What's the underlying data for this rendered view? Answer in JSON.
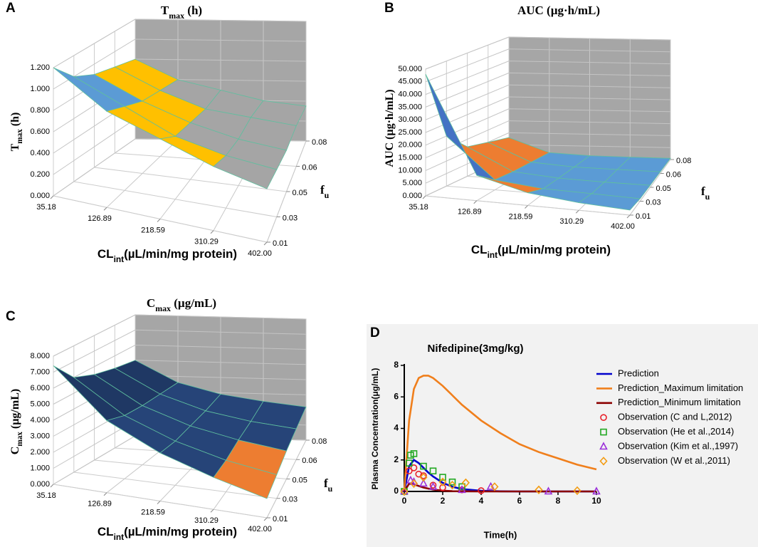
{
  "chart_data": [
    {
      "type": "surface",
      "panel_label": "A",
      "title": [
        "T",
        "max",
        " (h)"
      ],
      "zlabel": [
        "T",
        "max",
        " (h)"
      ],
      "xlabel": [
        "CL",
        "int",
        "(µL/min/mg protein)"
      ],
      "ylabel": [
        "f",
        "u"
      ],
      "categories": [
        "35.18",
        "126.89",
        "218.59",
        "310.29",
        "402.00"
      ],
      "depth_categories": [
        "0.01",
        "0.03",
        "0.05",
        "0.06",
        "0.08"
      ],
      "values": [
        [
          1.2,
          0.9,
          0.75,
          0.6,
          0.5
        ],
        [
          1.0,
          0.8,
          0.6,
          0.5,
          0.45
        ],
        [
          0.9,
          0.7,
          0.55,
          0.45,
          0.4
        ],
        [
          0.85,
          0.65,
          0.5,
          0.45,
          0.4
        ],
        [
          0.8,
          0.6,
          0.5,
          0.4,
          0.35
        ]
      ],
      "zlim": [
        0,
        1.2
      ],
      "zticks": [
        {
          "value": 0,
          "label": "0.000"
        },
        {
          "value": 0.2,
          "label": "0.200"
        },
        {
          "value": 0.4,
          "label": "0.400"
        },
        {
          "value": 0.6,
          "label": "0.600"
        },
        {
          "value": 0.8,
          "label": "0.800"
        },
        {
          "value": 1.0,
          "label": "1.000"
        },
        {
          "value": 1.2,
          "label": "1.200"
        }
      ],
      "colors": [
        "#4472c4",
        "#ed7d31",
        "#a5a5a5",
        "#ffc000",
        "#5b9bd5",
        "#70ad47"
      ]
    },
    {
      "type": "surface",
      "panel_label": "B",
      "title": [
        "AUC  (µg·h/mL)"
      ],
      "zlabel": [
        "AUC (µg·h/mL)"
      ],
      "xlabel": [
        "CL",
        "int",
        "(µL/min/mg protein)"
      ],
      "ylabel": [
        "f",
        "u"
      ],
      "categories": [
        "35.18",
        "126.89",
        "218.59",
        "310.29",
        "402.00"
      ],
      "depth_categories": [
        "0.01",
        "0.03",
        "0.05",
        "0.06",
        "0.08"
      ],
      "values": [
        [
          48,
          10,
          5,
          3,
          2
        ],
        [
          20,
          4,
          2,
          1.5,
          1
        ],
        [
          12,
          3,
          1.5,
          1,
          0.8
        ],
        [
          10,
          2.5,
          1.2,
          0.9,
          0.7
        ],
        [
          8,
          2,
          1,
          0.7,
          0.5
        ]
      ],
      "zlim": [
        0,
        50
      ],
      "zticks": [
        {
          "value": 0,
          "label": "0.000"
        },
        {
          "value": 5,
          "label": "5.000"
        },
        {
          "value": 10,
          "label": "10.000"
        },
        {
          "value": 15,
          "label": "15.000"
        },
        {
          "value": 20,
          "label": "20.000"
        },
        {
          "value": 25,
          "label": "25.000"
        },
        {
          "value": 30,
          "label": "30.000"
        },
        {
          "value": 35,
          "label": "35.000"
        },
        {
          "value": 40,
          "label": "40.000"
        },
        {
          "value": 45,
          "label": "45.000"
        },
        {
          "value": 50,
          "label": "50.000"
        }
      ],
      "colors": [
        "#5b9bd5",
        "#ed7d31",
        "#a5a5a5",
        "#ffc000",
        "#4472c4",
        "#70ad47",
        "#9dc3e6",
        "#f4b183",
        "#c9c9c9",
        "#ffd966"
      ]
    },
    {
      "type": "surface",
      "panel_label": "C",
      "title": [
        "C",
        "max",
        " (µg/mL)"
      ],
      "zlabel": [
        "C",
        "max",
        " (µg/mL)"
      ],
      "xlabel": [
        "CL",
        "int",
        "(µL/min/mg protein)"
      ],
      "ylabel": [
        "f",
        "u"
      ],
      "categories": [
        "35.18",
        "126.89",
        "218.59",
        "310.29",
        "402.00"
      ],
      "depth_categories": [
        "0.01",
        "0.03",
        "0.05",
        "0.06",
        "0.08"
      ],
      "values": [
        [
          7.4,
          4.5,
          3,
          2,
          1.2
        ],
        [
          6,
          4,
          2.8,
          2,
          1.5
        ],
        [
          5.5,
          3.8,
          2.8,
          2.2,
          1.8
        ],
        [
          5.2,
          3.7,
          2.8,
          2.3,
          2.0
        ],
        [
          5,
          3.6,
          2.9,
          2.5,
          2.2
        ]
      ],
      "zlim": [
        0,
        8
      ],
      "zticks": [
        {
          "value": 0,
          "label": "0.000"
        },
        {
          "value": 1,
          "label": "1.000"
        },
        {
          "value": 2,
          "label": "2.000"
        },
        {
          "value": 3,
          "label": "3.000"
        },
        {
          "value": 4,
          "label": "4.000"
        },
        {
          "value": 5,
          "label": "5.000"
        },
        {
          "value": 6,
          "label": "6.000"
        },
        {
          "value": 7,
          "label": "7.000"
        },
        {
          "value": 8,
          "label": "8.000"
        }
      ],
      "colors": [
        "#5b9bd5",
        "#ed7d31",
        "#264478",
        "#264478",
        "#1f3864",
        "#1f3864",
        "#203864",
        "#203864"
      ]
    },
    {
      "type": "line",
      "panel_label": "D",
      "title": "Nifedipine(3mg/kg)",
      "xlabel": "Time(h)",
      "ylabel": "Plasma Concentration(μg/mL)",
      "x": [
        0,
        0.25,
        0.5,
        0.75,
        1,
        1.25,
        1.5,
        2,
        2.5,
        3,
        4,
        5,
        6,
        7,
        8,
        9,
        10
      ],
      "xlim": [
        0,
        10
      ],
      "xticks": [
        0,
        2,
        4,
        6,
        8,
        10
      ],
      "ylim": [
        0,
        8
      ],
      "yticks": [
        0,
        2,
        4,
        6,
        8
      ],
      "series": [
        {
          "name": "Prediction",
          "color": "#0000cc",
          "values": [
            0,
            1.6,
            2.0,
            1.8,
            1.5,
            1.2,
            0.95,
            0.55,
            0.3,
            0.15,
            0.04,
            0.01,
            0,
            0,
            0,
            0,
            0
          ]
        },
        {
          "name": "Prediction_Maximum limitation",
          "color": "#f07f1c",
          "values": [
            0,
            4.5,
            6.5,
            7.2,
            7.35,
            7.35,
            7.2,
            6.7,
            6.1,
            5.5,
            4.5,
            3.7,
            3.0,
            2.5,
            2.1,
            1.7,
            1.4
          ]
        },
        {
          "name": "Prediction_Minimum limitation",
          "color": "#8b0000",
          "values": [
            0,
            0.5,
            0.45,
            0.35,
            0.25,
            0.18,
            0.12,
            0.05,
            0.02,
            0.01,
            0,
            0,
            0,
            0,
            0,
            0,
            0
          ]
        },
        {
          "name": "Observation (C and L,2012)",
          "color": "#e8202a",
          "marker": "circle",
          "x": [
            0,
            0.25,
            0.5,
            0.75,
            1,
            1.5,
            2,
            3,
            4
          ],
          "values": [
            0,
            1.3,
            1.5,
            1.1,
            1.0,
            0.4,
            0.25,
            0.1,
            0.05
          ]
        },
        {
          "name": "Observation (He et al.,2014)",
          "color": "#22a822",
          "marker": "square",
          "x": [
            0,
            0.25,
            0.33,
            0.5,
            1,
            1.5,
            2,
            2.5,
            3
          ],
          "values": [
            0,
            1.8,
            2.3,
            2.4,
            1.6,
            1.3,
            0.9,
            0.6,
            0.3
          ]
        },
        {
          "name": "Observation (Kim et al.,1997)",
          "color": "#9b30d9",
          "marker": "triangle",
          "x": [
            0,
            0.33,
            0.5,
            1,
            1.5,
            3,
            4.5,
            7.5,
            10
          ],
          "values": [
            0,
            0.7,
            0.6,
            0.5,
            0.3,
            0.1,
            0.3,
            0,
            0
          ]
        },
        {
          "name": "Observation (W et al.,2011)",
          "color": "#f39c12",
          "marker": "diamond",
          "x": [
            0,
            0.5,
            1,
            2,
            2.5,
            3.2,
            4.7,
            7,
            9
          ],
          "values": [
            0,
            0.5,
            0.9,
            0.6,
            0.4,
            0.55,
            0.3,
            0.1,
            0.05
          ]
        }
      ]
    }
  ]
}
